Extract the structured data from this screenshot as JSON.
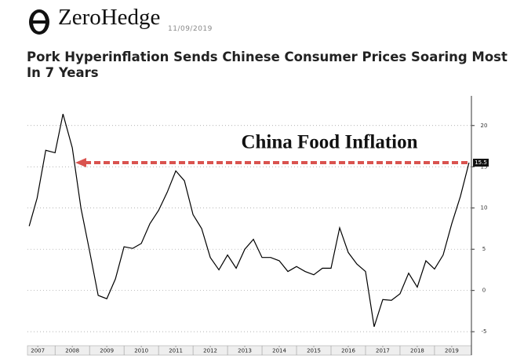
{
  "header": {
    "brand": "ZeroHedge",
    "date": "11/09/2019",
    "headline": "Pork Hyperinflation Sends Chinese Consumer Prices Soaring Most In 7 Years"
  },
  "chart_data": {
    "type": "line",
    "annotation": "China Food Inflation",
    "color": "#000000",
    "arrow_color": "#d9534f",
    "grid": true,
    "x": [
      2007.25,
      2007.48,
      2007.73,
      2008.0,
      2008.23,
      2008.5,
      2008.75,
      2009.0,
      2009.25,
      2009.5,
      2009.75,
      2010.0,
      2010.25,
      2010.5,
      2010.75,
      2011.0,
      2011.25,
      2011.5,
      2011.75,
      2012.0,
      2012.25,
      2012.5,
      2012.75,
      2013.0,
      2013.25,
      2013.5,
      2013.75,
      2014.0,
      2014.25,
      2014.5,
      2014.75,
      2015.0,
      2015.25,
      2015.5,
      2015.75,
      2016.0,
      2016.25,
      2016.5,
      2016.75,
      2017.0,
      2017.25,
      2017.5,
      2017.75,
      2018.0,
      2018.25,
      2018.5,
      2018.75,
      2019.0,
      2019.25,
      2019.5,
      2019.75,
      2020.0
    ],
    "values": [
      7.8,
      11.2,
      17.0,
      16.7,
      21.4,
      17.3,
      10.0,
      4.8,
      -0.6,
      -1.0,
      1.4,
      5.3,
      5.1,
      5.7,
      8.1,
      9.7,
      11.9,
      14.5,
      13.3,
      9.2,
      7.5,
      4.0,
      2.5,
      4.3,
      2.7,
      5.0,
      6.2,
      4.0,
      4.0,
      3.6,
      2.3,
      2.9,
      2.3,
      1.9,
      2.7,
      2.7,
      7.6,
      4.6,
      3.2,
      2.3,
      -4.4,
      -1.1,
      -1.2,
      -0.4,
      2.1,
      0.4,
      3.6,
      2.6,
      4.3,
      8.1,
      11.4,
      15.5
    ],
    "xlim": [
      2007.2,
      2020.07
    ],
    "xticks": [
      {
        "value": 2007.5,
        "label": "2007"
      },
      {
        "value": 2008.5,
        "label": "2008"
      },
      {
        "value": 2009.5,
        "label": "2009"
      },
      {
        "value": 2010.5,
        "label": "2010"
      },
      {
        "value": 2011.5,
        "label": "2011"
      },
      {
        "value": 2012.5,
        "label": "2012"
      },
      {
        "value": 2013.5,
        "label": "2013"
      },
      {
        "value": 2014.5,
        "label": "2014"
      },
      {
        "value": 2015.5,
        "label": "2015"
      },
      {
        "value": 2016.5,
        "label": "2016"
      },
      {
        "value": 2017.5,
        "label": "2017"
      },
      {
        "value": 2018.5,
        "label": "2018"
      },
      {
        "value": 2019.5,
        "label": "2019"
      }
    ],
    "ylim": [
      -6.7,
      23.6
    ],
    "yticks": [
      -5,
      0,
      5,
      10,
      15,
      20
    ]
  }
}
